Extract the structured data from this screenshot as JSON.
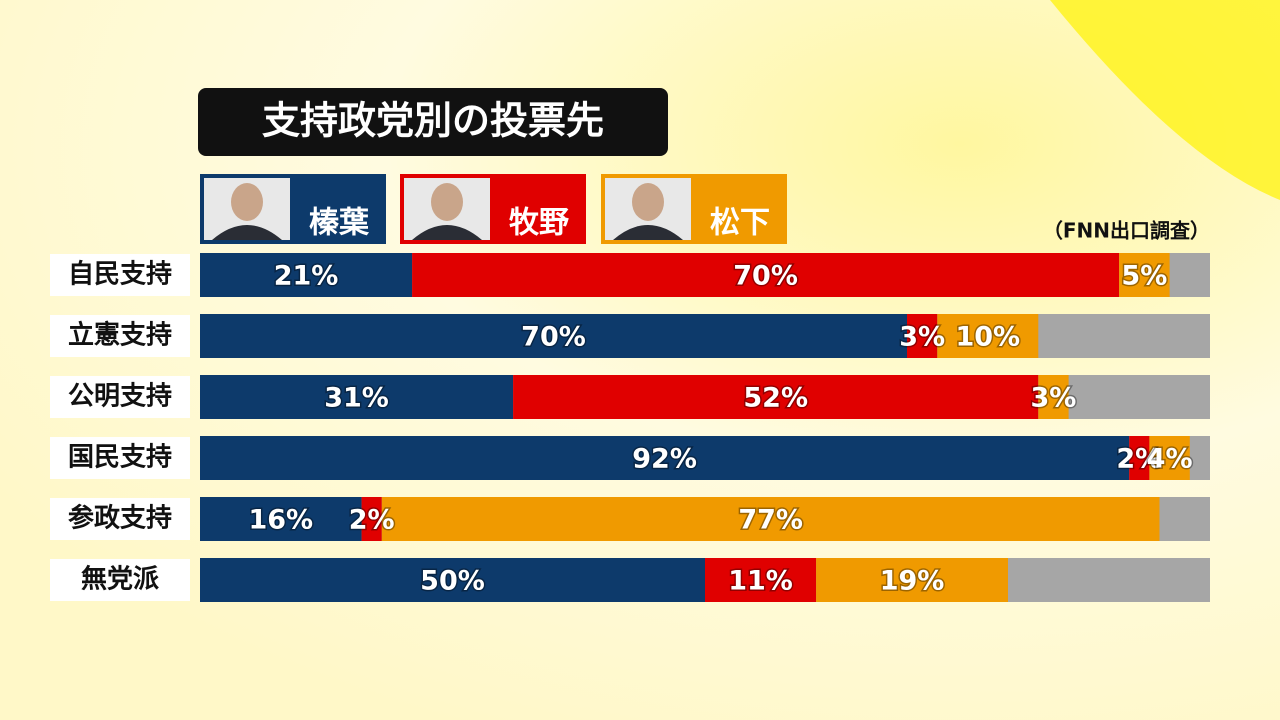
{
  "chart_data": {
    "type": "stacked-bar",
    "title": "支持政党別の投票先",
    "source": "（FNN出口調査）",
    "categories": [
      "自民支持",
      "立憲支持",
      "公明支持",
      "国民支持",
      "参政支持",
      "無党派"
    ],
    "xlim": [
      0,
      100
    ],
    "series": [
      {
        "name": "榛葉",
        "color": "#0d3a6b",
        "values": [
          21,
          70,
          31,
          92,
          16,
          50
        ],
        "value_labels": [
          "21%",
          "70%",
          "31%",
          "92%",
          "16%",
          "50%"
        ]
      },
      {
        "name": "牧野",
        "color": "#e00000",
        "values": [
          70,
          3,
          52,
          2,
          2,
          11
        ],
        "value_labels": [
          "70%",
          "3%",
          "52%",
          "2%",
          "2%",
          "11%"
        ]
      },
      {
        "name": "松下",
        "color": "#f09a00",
        "values": [
          5,
          10,
          3,
          4,
          77,
          19
        ],
        "value_labels": [
          "5%",
          "10%",
          "3%",
          "4%",
          "77%",
          "19%"
        ]
      }
    ]
  }
}
